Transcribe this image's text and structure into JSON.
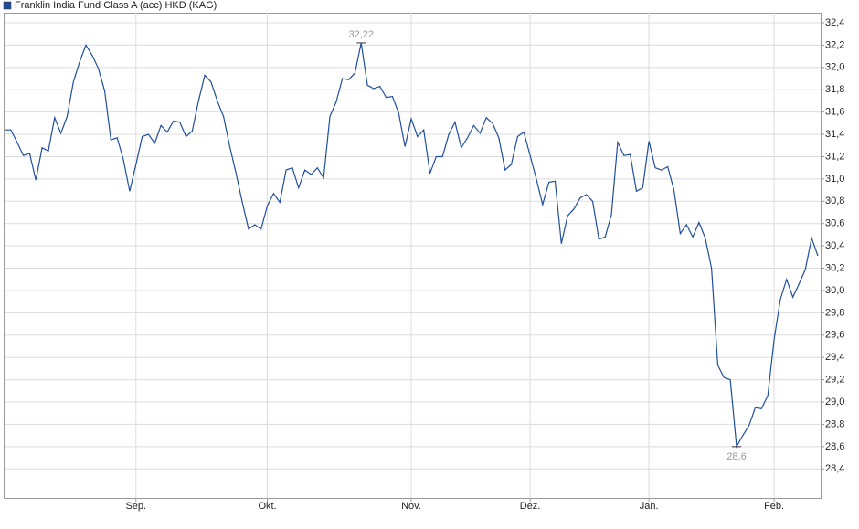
{
  "chart_data": {
    "type": "line",
    "categories": [
      null,
      null,
      null,
      null,
      null,
      null,
      null,
      null,
      null,
      null,
      null,
      null,
      null,
      null,
      null,
      null,
      null,
      null,
      null,
      null,
      null,
      "Sep.",
      null,
      null,
      null,
      null,
      null,
      null,
      null,
      null,
      null,
      null,
      null,
      null,
      null,
      null,
      null,
      null,
      null,
      null,
      null,
      null,
      "Okt.",
      null,
      null,
      null,
      null,
      null,
      null,
      null,
      null,
      null,
      null,
      null,
      null,
      null,
      null,
      null,
      null,
      null,
      null,
      null,
      null,
      null,
      null,
      "Nov.",
      null,
      null,
      null,
      null,
      null,
      null,
      null,
      null,
      null,
      null,
      null,
      null,
      null,
      null,
      null,
      null,
      null,
      null,
      "Dez.",
      null,
      null,
      null,
      null,
      null,
      null,
      null,
      null,
      null,
      null,
      null,
      null,
      null,
      null,
      null,
      null,
      null,
      null,
      "Jan.",
      null,
      null,
      null,
      null,
      null,
      null,
      null,
      null,
      null,
      null,
      null,
      null,
      null,
      null,
      null,
      null,
      null,
      null,
      null,
      "Feb.",
      null,
      null,
      null,
      null,
      null,
      null,
      null
    ],
    "series": [
      {
        "name": "Franklin India Fund Class A (acc) HKD (KAG)",
        "color": "#1f4e9c",
        "values": [
          31.44,
          31.44,
          31.33,
          31.21,
          31.23,
          30.99,
          31.28,
          31.25,
          31.55,
          31.41,
          31.56,
          31.87,
          32.05,
          32.2,
          32.11,
          31.99,
          31.79,
          31.35,
          31.37,
          31.17,
          30.89,
          31.13,
          31.38,
          31.4,
          31.32,
          31.48,
          31.42,
          31.52,
          31.51,
          31.38,
          31.43,
          31.7,
          31.93,
          31.87,
          31.7,
          31.56,
          31.29,
          31.05,
          30.79,
          30.55,
          30.59,
          30.55,
          30.76,
          30.87,
          30.79,
          31.08,
          31.1,
          30.92,
          31.08,
          31.04,
          31.1,
          31.01,
          31.56,
          31.69,
          31.9,
          31.89,
          31.95,
          32.22,
          31.84,
          31.81,
          31.83,
          31.73,
          31.74,
          31.59,
          31.29,
          31.54,
          31.38,
          31.44,
          31.05,
          31.2,
          31.2,
          31.4,
          31.51,
          31.28,
          31.37,
          31.48,
          31.41,
          31.55,
          31.5,
          31.37,
          31.08,
          31.13,
          31.38,
          31.42,
          31.21,
          31.0,
          30.77,
          30.97,
          30.98,
          30.42,
          30.67,
          30.73,
          30.83,
          30.86,
          30.8,
          30.46,
          30.48,
          30.68,
          31.33,
          31.21,
          31.22,
          30.89,
          30.92,
          31.34,
          31.1,
          31.08,
          31.11,
          30.9,
          30.51,
          30.59,
          30.48,
          30.61,
          30.47,
          30.2,
          29.33,
          29.22,
          29.2,
          28.6,
          28.7,
          28.79,
          28.95,
          28.94,
          29.06,
          29.56,
          29.92,
          30.1,
          29.94,
          30.06,
          30.19,
          30.47,
          30.31
        ],
        "value_labels": [
          null,
          null,
          null,
          null,
          null,
          null,
          null,
          null,
          null,
          null,
          null,
          null,
          null,
          null,
          null,
          null,
          null,
          null,
          null,
          null,
          null,
          null,
          null,
          null,
          null,
          null,
          null,
          null,
          null,
          null,
          null,
          null,
          null,
          null,
          null,
          null,
          null,
          null,
          null,
          null,
          null,
          null,
          null,
          null,
          null,
          null,
          null,
          null,
          null,
          null,
          null,
          null,
          null,
          null,
          null,
          null,
          null,
          "32,22",
          null,
          null,
          null,
          null,
          null,
          null,
          null,
          null,
          null,
          null,
          null,
          null,
          null,
          null,
          null,
          null,
          null,
          null,
          null,
          null,
          null,
          null,
          null,
          null,
          null,
          null,
          null,
          null,
          null,
          null,
          null,
          null,
          null,
          null,
          null,
          null,
          null,
          null,
          null,
          null,
          null,
          null,
          null,
          null,
          null,
          null,
          null,
          null,
          null,
          null,
          null,
          null,
          null,
          null,
          null,
          null,
          null,
          null,
          null,
          "28,6",
          null,
          null,
          null,
          null,
          null,
          null,
          null,
          null,
          null,
          null,
          null,
          null,
          null
        ]
      }
    ],
    "ylim": [
      28.14,
      32.49
    ],
    "yticks": [
      {
        "value": 28.4,
        "label": "28,4"
      },
      {
        "value": 28.6,
        "label": "28,6"
      },
      {
        "value": 28.8,
        "label": "28,8"
      },
      {
        "value": 29.0,
        "label": "29,0"
      },
      {
        "value": 29.2,
        "label": "29,2"
      },
      {
        "value": 29.4,
        "label": "29,4"
      },
      {
        "value": 29.6,
        "label": "29,6"
      },
      {
        "value": 29.8,
        "label": "29,8"
      },
      {
        "value": 30.0,
        "label": "30,0"
      },
      {
        "value": 30.2,
        "label": "30,2"
      },
      {
        "value": 30.4,
        "label": "30,4"
      },
      {
        "value": 30.6,
        "label": "30,6"
      },
      {
        "value": 30.8,
        "label": "30,8"
      },
      {
        "value": 31.0,
        "label": "31,0"
      },
      {
        "value": 31.2,
        "label": "31,2"
      },
      {
        "value": 31.4,
        "label": "31,4"
      },
      {
        "value": 31.6,
        "label": "31,6"
      },
      {
        "value": 31.8,
        "label": "31,8"
      },
      {
        "value": 32.0,
        "label": "32,0"
      },
      {
        "value": 32.2,
        "label": "32,2"
      },
      {
        "value": 32.4,
        "label": "32,4"
      }
    ],
    "grid": true,
    "legend": "top-left"
  }
}
